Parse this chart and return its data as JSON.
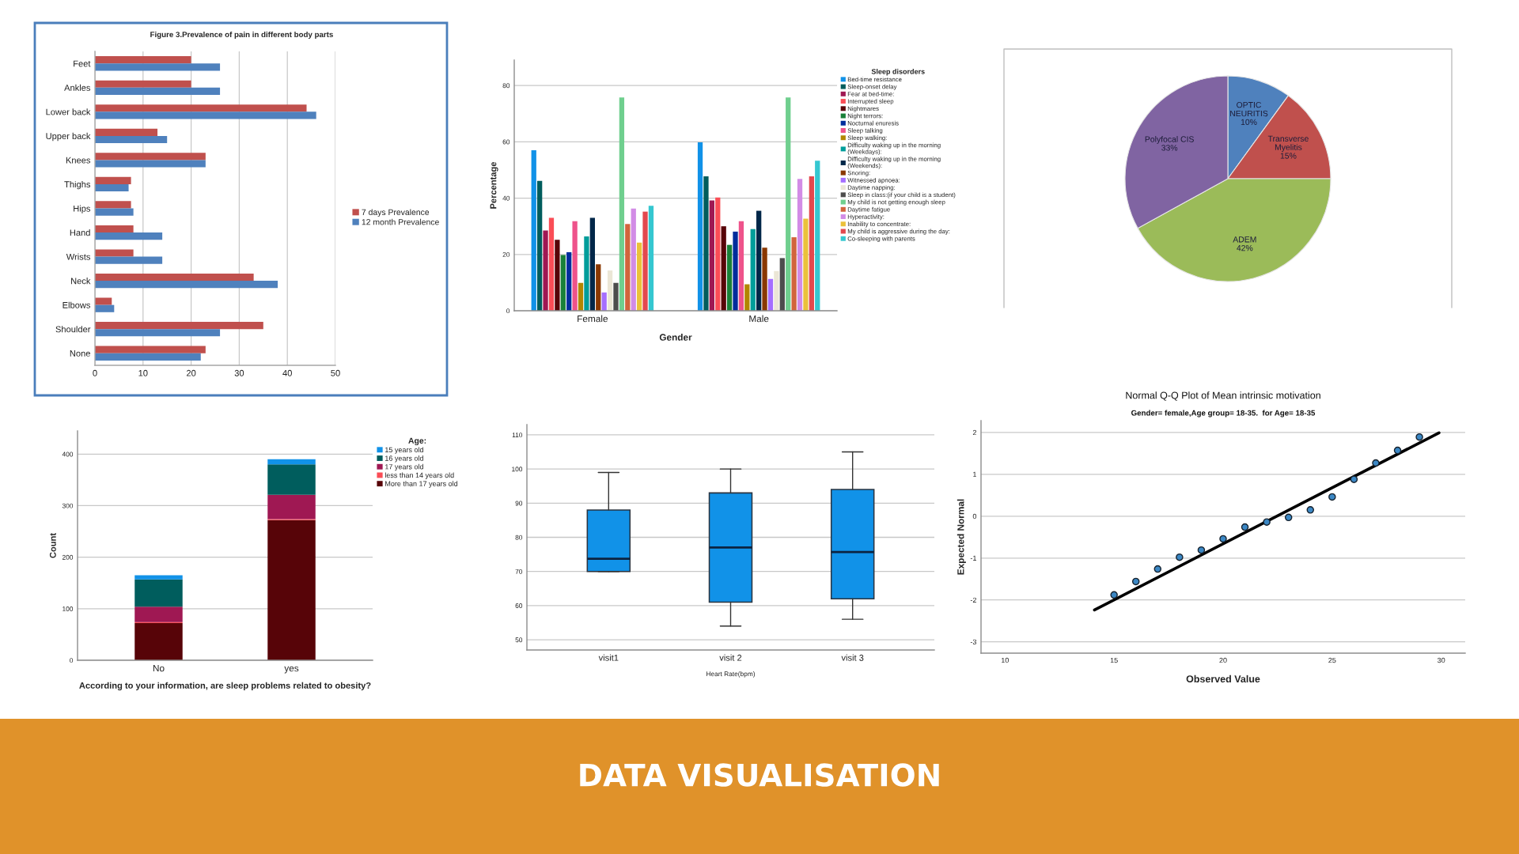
{
  "chart_data": [
    {
      "type": "bar",
      "orientation": "horizontal",
      "title": "Figure 3.Prevalence of pain in different body parts",
      "categories": [
        "Feet",
        "Ankles",
        "Lower back",
        "Upper back",
        "Knees",
        "Thighs",
        "Hips",
        "Hand",
        "Wrists",
        "Neck",
        "Elbows",
        "Shoulder",
        "None"
      ],
      "series": [
        {
          "name": "7 days Prevalence",
          "color": "#c0504d",
          "values": [
            20,
            20,
            44,
            13,
            23,
            7.5,
            7.5,
            8,
            8,
            33,
            3.5,
            35,
            23
          ]
        },
        {
          "name": "12 month Prevalence",
          "color": "#4f81bd",
          "values": [
            26,
            26,
            46,
            15,
            23,
            7,
            8,
            14,
            14,
            38,
            4,
            26,
            22
          ]
        }
      ],
      "xlim": [
        0,
        50
      ],
      "xticks": [
        0,
        10,
        20,
        30,
        40,
        50
      ],
      "grid": "x",
      "legend": "right"
    },
    {
      "type": "bar",
      "categories": [
        "Female",
        "Male"
      ],
      "xlabel": "Gender",
      "ylabel": "Percentage",
      "legend_title": "Sleep disorders",
      "series": [
        {
          "name": "Bed-time resistance",
          "color": "#1192e8",
          "values": [
            57.0,
            59.8
          ]
        },
        {
          "name": "Sleep-onset delay",
          "color": "#005d5d",
          "values": [
            46.1,
            47.7
          ]
        },
        {
          "name": "Fear at bed-time:",
          "color": "#9f1853",
          "values": [
            28.5,
            39.2
          ]
        },
        {
          "name": "Interrupted sleep",
          "color": "#fa4d56",
          "values": [
            33.0,
            40.2
          ]
        },
        {
          "name": "Nightmares",
          "color": "#570408",
          "values": [
            25.2,
            30.0
          ]
        },
        {
          "name": "Night terrors:",
          "color": "#198038",
          "values": [
            19.8,
            23.4
          ]
        },
        {
          "name": "Nocturnal enuresis",
          "color": "#002d9c",
          "values": [
            20.8,
            28.1
          ]
        },
        {
          "name": "Sleep talking",
          "color": "#ee538b",
          "values": [
            31.8,
            31.8
          ]
        },
        {
          "name": "Sleep walking:",
          "color": "#b28600",
          "values": [
            9.9,
            9.4
          ]
        },
        {
          "name": "Difficulty waking up in the morning (Weekdays):",
          "color": "#009d9a",
          "values": [
            26.4,
            29.0
          ]
        },
        {
          "name": "Difficulty waking up in the morning (Weekends):",
          "color": "#012749",
          "values": [
            33.0,
            35.5
          ]
        },
        {
          "name": "Snoring:",
          "color": "#8a3800",
          "values": [
            16.5,
            22.4
          ]
        },
        {
          "name": "Witnessed apnoea:",
          "color": "#a56eff",
          "values": [
            6.5,
            11.3
          ]
        },
        {
          "name": "Daytime napping:",
          "color": "#ebe6d6",
          "values": [
            14.3,
            14.1
          ]
        },
        {
          "name": "Sleep in class:(if your child is a student)",
          "color": "#4d4d4d",
          "values": [
            9.9,
            18.7
          ]
        },
        {
          "name": "My child is not getting enough sleep",
          "color": "#6fcf8e",
          "values": [
            75.7,
            75.7
          ]
        },
        {
          "name": "Daytime fatigue",
          "color": "#d2643c",
          "values": [
            30.8,
            26.1
          ]
        },
        {
          "name": "Hyperactivity:",
          "color": "#d28ce6",
          "values": [
            36.3,
            46.8
          ]
        },
        {
          "name": "Inability to concentrate:",
          "color": "#ebc13a",
          "values": [
            24.2,
            32.7
          ]
        },
        {
          "name": "My child is aggressive during the day:",
          "color": "#e3484e",
          "values": [
            35.2,
            47.7
          ]
        },
        {
          "name": "Co-sleeping with parents",
          "color": "#35c7d0",
          "values": [
            37.3,
            53.3
          ]
        }
      ],
      "ylim": [
        0,
        89
      ],
      "yticks": [
        0,
        20,
        40,
        60,
        80
      ],
      "grid": "y",
      "legend": "top right"
    },
    {
      "type": "pie",
      "categories": [
        "OPTIC NEURITIS",
        "Transverse Myelitis",
        "ADEM",
        "Polyfocal CIS"
      ],
      "values": [
        10,
        15,
        42,
        33
      ],
      "colors": [
        "#4f81bd",
        "#c0504d",
        "#9bbb59",
        "#8064a2"
      ],
      "value_labels": [
        "10%",
        "15%",
        "42%",
        "33%"
      ]
    },
    {
      "type": "bar",
      "stacked": true,
      "categories": [
        "No",
        "yes"
      ],
      "xlabel": "According to your information, are sleep problems related to obesity?",
      "ylabel": "Count",
      "legend_title": "Age:",
      "series": [
        {
          "name": "More than 17 years old",
          "color": "#570408",
          "values": [
            72,
            272
          ]
        },
        {
          "name": "less than 14 years old",
          "color": "#fa4d56",
          "values": [
            2,
            2
          ]
        },
        {
          "name": "17 years old",
          "color": "#9f1853",
          "values": [
            30,
            47
          ]
        },
        {
          "name": "16 years old",
          "color": "#005d5d",
          "values": [
            53,
            59
          ]
        },
        {
          "name": "15 years old",
          "color": "#1192e8",
          "values": [
            8,
            10
          ]
        }
      ],
      "ylim": [
        0,
        445
      ],
      "yticks": [
        0,
        100,
        200,
        300,
        400
      ],
      "grid": "y",
      "legend": "top right"
    },
    {
      "type": "box",
      "categories": [
        "visit1",
        "visit 2",
        "visit 3"
      ],
      "xlabel": "Heart Rate(bpm)",
      "series": [
        {
          "color": "#1192e8",
          "boxes": [
            {
              "low": 70,
              "q1": 70,
              "median": 73.7,
              "q3": 88,
              "high": 99
            },
            {
              "low": 54,
              "q1": 61,
              "median": 77,
              "q3": 93,
              "high": 100
            },
            {
              "low": 56,
              "q1": 62,
              "median": 75.7,
              "q3": 94,
              "high": 105
            }
          ]
        }
      ],
      "ylim": [
        47,
        113
      ],
      "yticks": [
        50,
        60,
        70,
        80,
        90,
        100,
        110
      ],
      "grid": "y"
    },
    {
      "type": "scatter",
      "title": "Normal Q-Q Plot of Mean intrinsic motivation",
      "subtitle": "Gender= female,Age group= 18-35.  for Age= 18-35",
      "xlabel": "Observed Value",
      "ylabel": "Expected Normal",
      "series": [
        {
          "type": "scatter",
          "color": "#3b87c4",
          "marker": "circle",
          "x": [
            15,
            16,
            17,
            18,
            19,
            20,
            21,
            22,
            23,
            24,
            25,
            26,
            27,
            28,
            29
          ],
          "values": [
            -1.88,
            -1.56,
            -1.26,
            -0.98,
            -0.81,
            -0.54,
            -0.26,
            -0.14,
            -0.03,
            0.15,
            0.46,
            0.88,
            1.27,
            1.57,
            1.89
          ]
        },
        {
          "type": "line",
          "color": "#000000",
          "x": [
            14.1,
            29.9
          ],
          "values": [
            -2.24,
            1.99
          ]
        }
      ],
      "xlim": [
        8.9,
        31.1
      ],
      "xticks": [
        10,
        15,
        20,
        25,
        30
      ],
      "ylim": [
        -3.27,
        2.28
      ],
      "yticks": [
        -3,
        -2,
        -1,
        0,
        1,
        2
      ],
      "grid": "y"
    },
    {
      "type": "other",
      "title": "DATA VISUALISATION"
    }
  ]
}
